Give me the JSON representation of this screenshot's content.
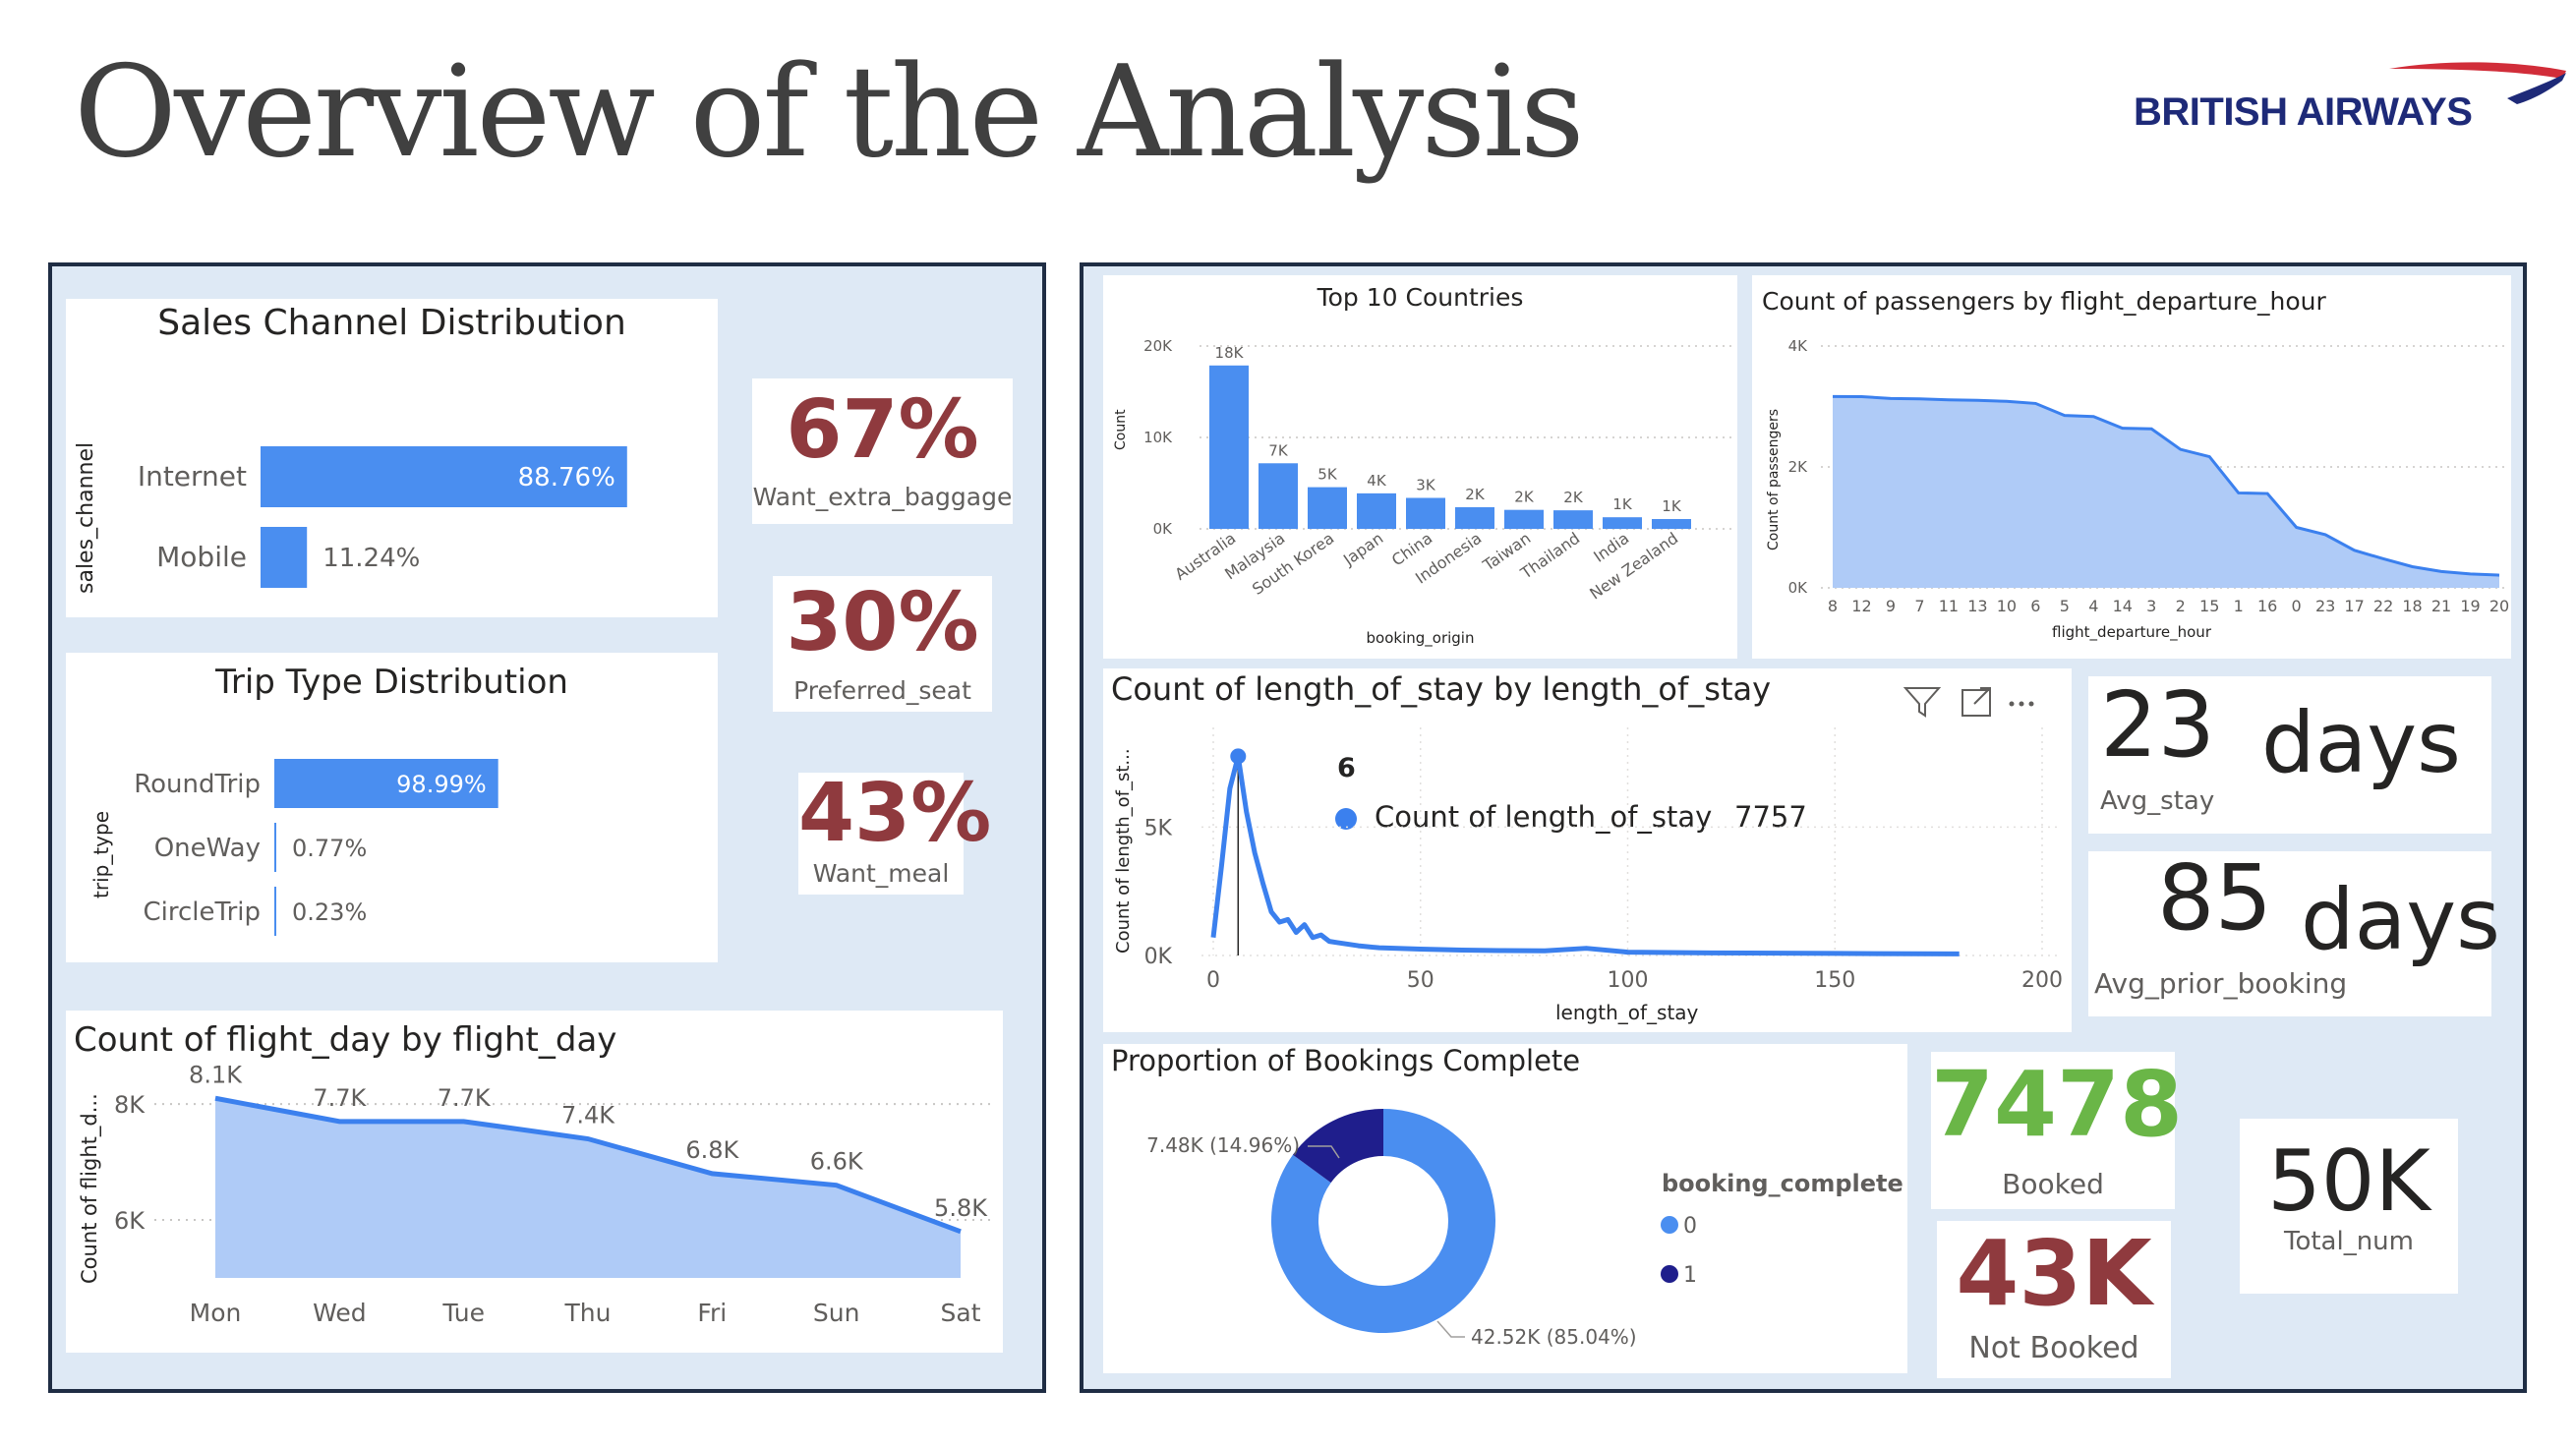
{
  "page": {
    "title": "Overview of the Analysis",
    "logo_text": "BRITISH AIRWAYS"
  },
  "sales_channel": {
    "title": "Sales Channel Distribution",
    "axis_label": "sales_channel",
    "chart_data": {
      "type": "bar",
      "orientation": "horizontal",
      "categories": [
        "Internet",
        "Mobile"
      ],
      "values": [
        88.76,
        11.24
      ],
      "labels": [
        "88.76%",
        "11.24%"
      ],
      "xlim": [
        0,
        100
      ]
    }
  },
  "trip_type": {
    "title": "Trip Type Distribution",
    "axis_label": "trip_type",
    "chart_data": {
      "type": "bar",
      "orientation": "horizontal",
      "categories": [
        "RoundTrip",
        "OneWay",
        "CircleTrip"
      ],
      "values": [
        98.99,
        0.77,
        0.23
      ],
      "labels": [
        "98.99%",
        "0.77%",
        "0.23%"
      ],
      "xlim": [
        0,
        100
      ]
    }
  },
  "kpis": {
    "baggage": {
      "value": "67%",
      "label": "Want_extra_baggage"
    },
    "seat": {
      "value": "30%",
      "label": "Preferred_seat"
    },
    "meal": {
      "value": "43%",
      "label": "Want_meal"
    },
    "avg_stay": {
      "value": "23",
      "unit": "days",
      "label": "Avg_stay"
    },
    "avg_prior": {
      "value": "85",
      "unit": "days",
      "label": "Avg_prior_booking"
    },
    "booked": {
      "value": "7478",
      "label": "Booked"
    },
    "not_booked": {
      "value": "43K",
      "label": "Not Booked"
    },
    "total": {
      "value": "50K",
      "label": "Total_num"
    }
  },
  "flight_day": {
    "title": "Count of flight_day by flight_day",
    "ylabel": "Count of flight_d...",
    "chart_data": {
      "type": "area",
      "categories": [
        "Mon",
        "Wed",
        "Tue",
        "Thu",
        "Fri",
        "Sun",
        "Sat"
      ],
      "values": [
        8100,
        7700,
        7700,
        7400,
        6800,
        6600,
        5800
      ],
      "labels": [
        "8.1K",
        "7.7K",
        "7.7K",
        "7.4K",
        "6.8K",
        "6.6K",
        "5.8K"
      ],
      "yticks": [
        6000,
        8000
      ],
      "ytick_labels": [
        "6K",
        "8K"
      ],
      "ylim": [
        5000,
        8800
      ]
    }
  },
  "top_countries": {
    "title": "Top 10 Countries",
    "ylabel": "Count",
    "xlabel": "booking_origin",
    "chart_data": {
      "type": "bar",
      "categories": [
        "Australia",
        "Malaysia",
        "South Korea",
        "Japan",
        "China",
        "Indonesia",
        "Taiwan",
        "Thailand",
        "India",
        "New Zealand"
      ],
      "values": [
        17872,
        7174,
        4559,
        3885,
        3387,
        2369,
        2077,
        2030,
        1270,
        1074
      ],
      "labels": [
        "18K",
        "7K",
        "5K",
        "4K",
        "3K",
        "2K",
        "2K",
        "2K",
        "1K",
        "1K"
      ],
      "yticks": [
        0,
        10000,
        20000
      ],
      "ytick_labels": [
        "0K",
        "10K",
        "20K"
      ],
      "ylim": [
        0,
        20000
      ]
    }
  },
  "departure_hour": {
    "title": "Count of passengers by flight_departure_hour",
    "ylabel": "Count of passengers",
    "xlabel": "flight_departure_hour",
    "chart_data": {
      "type": "area",
      "categories": [
        "8",
        "12",
        "9",
        "7",
        "11",
        "13",
        "10",
        "6",
        "5",
        "4",
        "14",
        "3",
        "2",
        "15",
        "1",
        "16",
        "0",
        "23",
        "17",
        "22",
        "18",
        "21",
        "19",
        "20"
      ],
      "values": [
        3165,
        3163,
        3132,
        3126,
        3110,
        3101,
        3085,
        3050,
        2851,
        2834,
        2640,
        2630,
        2290,
        2170,
        1570,
        1560,
        1000,
        880,
        620,
        480,
        350,
        270,
        230,
        210
      ],
      "yticks": [
        0,
        2000,
        4000
      ],
      "ytick_labels": [
        "0K",
        "2K",
        "4K"
      ],
      "ylim": [
        0,
        4000
      ]
    }
  },
  "length_of_stay": {
    "title": "Count of length_of_stay by length_of_stay",
    "ylabel": "Count of length_of_st...",
    "xlabel": "length_of_stay",
    "tooltip": {
      "x": "6",
      "series": "Count of length_of_stay",
      "value": "7757"
    },
    "chart_data": {
      "type": "line",
      "x": [
        0,
        2,
        4,
        6,
        8,
        10,
        12,
        14,
        16,
        18,
        20,
        22,
        24,
        26,
        28,
        30,
        35,
        40,
        50,
        60,
        70,
        80,
        90,
        100,
        120,
        150,
        180
      ],
      "y": [
        700,
        3500,
        6500,
        7757,
        5600,
        4000,
        2800,
        1700,
        1300,
        1400,
        900,
        1200,
        700,
        800,
        550,
        500,
        380,
        300,
        250,
        210,
        190,
        180,
        280,
        130,
        100,
        80,
        60
      ],
      "xticks": [
        0,
        50,
        100,
        150,
        200
      ],
      "yticks": [
        0,
        5000
      ],
      "ytick_labels": [
        "0K",
        "5K"
      ],
      "xlim": [
        0,
        200
      ],
      "ylim": [
        0,
        8500
      ]
    }
  },
  "bookings_complete": {
    "title": "Proportion of Bookings Complete",
    "legend_title": "booking_complete",
    "chart_data": {
      "type": "pie",
      "hole": true,
      "categories": [
        "0",
        "1"
      ],
      "values": [
        42520,
        7480
      ],
      "labels": [
        "42.52K (85.04%)",
        "7.48K (14.96%)"
      ],
      "colors": [
        "#4a8ef0",
        "#1f1e8c"
      ]
    }
  },
  "colors": {
    "bar": "#4a8ef0",
    "area": "#afcbf7",
    "line": "#3b80ee",
    "kpi_red": "#8f3a3e",
    "kpi_green": "#6ab647",
    "panel_bg": "#dee9f5",
    "panel_border": "#1f2d44"
  },
  "icons": [
    "filter-icon",
    "focus-mode-icon",
    "more-options-icon",
    "british-airways-speedmarque-icon"
  ]
}
